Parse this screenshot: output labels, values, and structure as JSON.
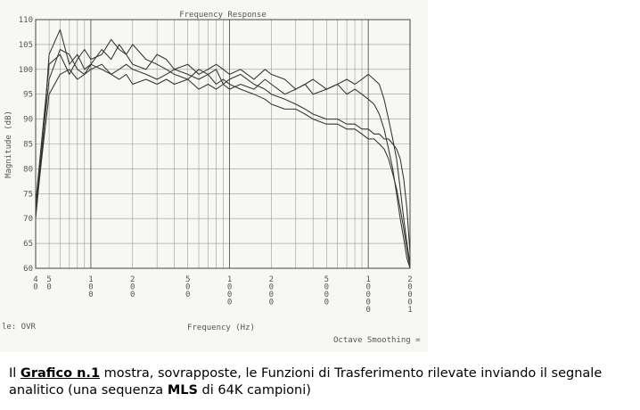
{
  "chart_data": {
    "type": "line",
    "title": "Frequency Response",
    "xlabel": "Frequency (Hz)",
    "ylabel": "Magnitude (dB)",
    "x_scale": "log",
    "xlim": [
      40,
      20001
    ],
    "ylim": [
      60,
      110
    ],
    "x_ticks": [
      40,
      50,
      100,
      200,
      500,
      1000,
      2000,
      5000,
      10000,
      20001
    ],
    "x_tick_labels": [
      "40",
      "50",
      "100",
      "200",
      "500",
      "1000",
      "2000",
      "5000",
      "10000",
      "20001"
    ],
    "y_ticks": [
      60,
      65,
      70,
      75,
      80,
      85,
      90,
      95,
      100,
      105,
      110
    ],
    "y_tick_labels": [
      "60",
      "65",
      "70",
      "75",
      "80",
      "85",
      "90",
      "95",
      "100",
      "105",
      "110"
    ],
    "grid": true,
    "footer_left": "le: OVR",
    "footer_right": "Octave Smoothing =",
    "series": [
      {
        "x": [
          40,
          45,
          50,
          60,
          70,
          80,
          90,
          100,
          120,
          140,
          160,
          180,
          200,
          250,
          300,
          350,
          400,
          500,
          600,
          700,
          800,
          900,
          1000,
          1200,
          1500,
          1800,
          2000,
          2500,
          3000,
          3500,
          4000,
          5000,
          6000,
          7000,
          8000,
          9000,
          10000,
          11000,
          12000,
          13000,
          14000,
          15000,
          16000,
          17000,
          18000,
          19000,
          20000
        ],
        "y": [
          70,
          85,
          103,
          108,
          101,
          103,
          100,
          101,
          104,
          102,
          105,
          103,
          101,
          100,
          103,
          102,
          100,
          101,
          99,
          100,
          101,
          100,
          99,
          100,
          98,
          100,
          99,
          98,
          96,
          97,
          95,
          96,
          97,
          95,
          96,
          95,
          94,
          93,
          91,
          88,
          84,
          80,
          75,
          70,
          66,
          62,
          60
        ]
      },
      {
        "x": [
          40,
          45,
          50,
          60,
          70,
          80,
          90,
          100,
          120,
          140,
          160,
          180,
          200,
          250,
          300,
          350,
          400,
          500,
          600,
          700,
          800,
          900,
          1000,
          1200,
          1500,
          1800,
          2000,
          2500,
          3000,
          3500,
          4000,
          5000,
          6000,
          7000,
          8000,
          9000,
          10000,
          11000,
          12000,
          13000,
          14000,
          15000,
          16000,
          17000,
          18000,
          19000,
          20000
        ],
        "y": [
          73,
          88,
          101,
          103,
          99,
          102,
          104,
          102,
          103,
          106,
          104,
          103,
          105,
          102,
          101,
          100,
          99,
          98,
          100,
          99,
          97,
          98,
          97,
          96,
          95,
          94,
          93,
          92,
          92,
          91,
          90,
          89,
          89,
          88,
          88,
          87,
          86,
          86,
          85,
          84,
          82,
          79,
          76,
          72,
          68,
          64,
          60
        ]
      },
      {
        "x": [
          40,
          45,
          50,
          60,
          70,
          80,
          90,
          100,
          120,
          140,
          160,
          180,
          200,
          250,
          300,
          350,
          400,
          500,
          600,
          700,
          800,
          900,
          1000,
          1200,
          1500,
          1800,
          2000,
          2500,
          3000,
          3500,
          4000,
          5000,
          6000,
          7000,
          8000,
          9000,
          10000,
          11000,
          12000,
          13000,
          14000,
          15000,
          16000,
          17000,
          18000,
          19000,
          20000
        ],
        "y": [
          72,
          86,
          98,
          104,
          103,
          100,
          99,
          101,
          100,
          99,
          100,
          101,
          100,
          99,
          98,
          99,
          100,
          99,
          98,
          99,
          100,
          97,
          98,
          99,
          97,
          96,
          95,
          94,
          93,
          92,
          91,
          90,
          90,
          89,
          89,
          88,
          88,
          87,
          87,
          86,
          86,
          85,
          84,
          82,
          78,
          72,
          63
        ]
      },
      {
        "x": [
          40,
          45,
          50,
          60,
          70,
          80,
          90,
          100,
          120,
          140,
          160,
          180,
          200,
          250,
          300,
          350,
          400,
          500,
          600,
          700,
          800,
          900,
          1000,
          1200,
          1500,
          1800,
          2000,
          2500,
          3000,
          3500,
          4000,
          5000,
          6000,
          7000,
          8000,
          9000,
          10000,
          11000,
          12000,
          13000,
          14000,
          15000,
          16000,
          17000,
          18000,
          19000,
          20000
        ],
        "y": [
          71,
          84,
          95,
          99,
          100,
          98,
          99,
          100,
          101,
          99,
          98,
          99,
          97,
          98,
          97,
          98,
          97,
          98,
          96,
          97,
          96,
          97,
          96,
          97,
          96,
          98,
          97,
          95,
          96,
          97,
          98,
          96,
          97,
          98,
          97,
          98,
          99,
          98,
          97,
          94,
          90,
          86,
          82,
          76,
          70,
          65,
          61
        ]
      }
    ]
  },
  "caption": {
    "p1": "Il ",
    "p2": "Grafico n.1",
    "p3": " mostra, sovrapposte, le Funzioni di Trasferimento rilevate inviando il segnale analitico (una sequenza ",
    "p4": "MLS",
    "p5": " di 64K campioni)"
  }
}
